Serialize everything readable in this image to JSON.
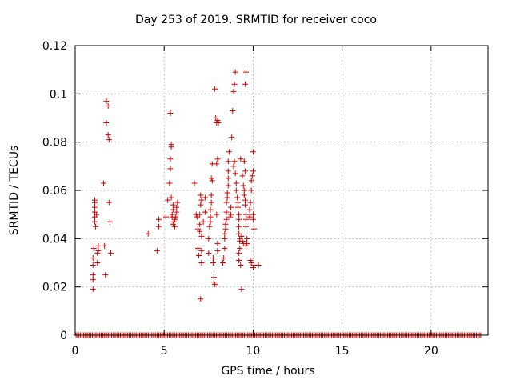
{
  "chart_data": {
    "type": "scatter",
    "title": "Day 253 of 2019, SRMTID for receiver coco",
    "xlabel": "GPS time / hours",
    "ylabel": "SRMTID / TECUs",
    "xlim": [
      0,
      23.2
    ],
    "ylim": [
      0,
      0.12
    ],
    "xticks": [
      0,
      5,
      10,
      15,
      20
    ],
    "yticks": [
      0,
      0.02,
      0.04,
      0.06,
      0.08,
      0.1,
      0.12
    ],
    "ytick_labels": [
      "0",
      "0.02",
      "0.04",
      "0.06",
      "0.08",
      "0.1",
      "0.12"
    ],
    "grid": true,
    "marker": "+",
    "color": "#cc0000",
    "zero_baseline": {
      "x_start": 0.05,
      "x_end": 22.8,
      "step": 0.083,
      "y": 0
    },
    "points": [
      [
        1.0,
        0.019
      ],
      [
        1.0,
        0.023
      ],
      [
        1.0,
        0.025
      ],
      [
        1.0,
        0.029
      ],
      [
        1.0,
        0.032
      ],
      [
        1.05,
        0.036
      ],
      [
        1.1,
        0.047
      ],
      [
        1.1,
        0.049
      ],
      [
        1.1,
        0.051
      ],
      [
        1.1,
        0.053
      ],
      [
        1.1,
        0.055
      ],
      [
        1.1,
        0.056
      ],
      [
        1.15,
        0.045
      ],
      [
        1.2,
        0.05
      ],
      [
        1.25,
        0.03
      ],
      [
        1.25,
        0.034
      ],
      [
        1.3,
        0.035
      ],
      [
        1.3,
        0.037
      ],
      [
        1.6,
        0.063
      ],
      [
        1.65,
        0.037
      ],
      [
        1.7,
        0.025
      ],
      [
        1.75,
        0.088
      ],
      [
        1.75,
        0.097
      ],
      [
        1.85,
        0.095
      ],
      [
        1.85,
        0.083
      ],
      [
        1.9,
        0.081
      ],
      [
        1.9,
        0.055
      ],
      [
        1.95,
        0.047
      ],
      [
        2.0,
        0.034
      ],
      [
        4.1,
        0.042
      ],
      [
        4.6,
        0.035
      ],
      [
        4.7,
        0.045
      ],
      [
        4.7,
        0.048
      ],
      [
        5.1,
        0.049
      ],
      [
        5.2,
        0.056
      ],
      [
        5.3,
        0.063
      ],
      [
        5.35,
        0.069
      ],
      [
        5.35,
        0.073
      ],
      [
        5.4,
        0.078
      ],
      [
        5.4,
        0.079
      ],
      [
        5.35,
        0.092
      ],
      [
        5.4,
        0.057
      ],
      [
        5.45,
        0.049
      ],
      [
        5.45,
        0.05
      ],
      [
        5.5,
        0.052
      ],
      [
        5.5,
        0.054
      ],
      [
        5.5,
        0.046
      ],
      [
        5.55,
        0.047
      ],
      [
        5.6,
        0.048
      ],
      [
        5.6,
        0.045
      ],
      [
        5.65,
        0.049
      ],
      [
        5.7,
        0.051
      ],
      [
        5.7,
        0.053
      ],
      [
        5.75,
        0.055
      ],
      [
        6.7,
        0.063
      ],
      [
        6.8,
        0.05
      ],
      [
        6.85,
        0.049
      ],
      [
        6.9,
        0.044
      ],
      [
        6.9,
        0.036
      ],
      [
        6.95,
        0.033
      ],
      [
        7.0,
        0.043
      ],
      [
        7.0,
        0.046
      ],
      [
        7.0,
        0.05
      ],
      [
        7.05,
        0.054
      ],
      [
        7.05,
        0.058
      ],
      [
        7.1,
        0.056
      ],
      [
        7.1,
        0.041
      ],
      [
        7.1,
        0.035
      ],
      [
        7.1,
        0.03
      ],
      [
        7.05,
        0.015
      ],
      [
        7.2,
        0.047
      ],
      [
        7.3,
        0.051
      ],
      [
        7.3,
        0.057
      ],
      [
        7.5,
        0.034
      ],
      [
        7.5,
        0.04
      ],
      [
        7.55,
        0.045
      ],
      [
        7.6,
        0.047
      ],
      [
        7.6,
        0.049
      ],
      [
        7.6,
        0.052
      ],
      [
        7.65,
        0.055
      ],
      [
        7.65,
        0.058
      ],
      [
        7.65,
        0.065
      ],
      [
        7.7,
        0.071
      ],
      [
        7.7,
        0.064
      ],
      [
        7.75,
        0.03
      ],
      [
        7.75,
        0.032
      ],
      [
        7.8,
        0.024
      ],
      [
        7.8,
        0.022
      ],
      [
        7.85,
        0.021
      ],
      [
        7.85,
        0.102
      ],
      [
        7.9,
        0.09
      ],
      [
        7.95,
        0.088
      ],
      [
        8.0,
        0.089
      ],
      [
        8.05,
        0.088
      ],
      [
        7.95,
        0.071
      ],
      [
        8.0,
        0.073
      ],
      [
        7.95,
        0.05
      ],
      [
        8.0,
        0.038
      ],
      [
        8.0,
        0.035
      ],
      [
        8.3,
        0.03
      ],
      [
        8.35,
        0.032
      ],
      [
        8.4,
        0.036
      ],
      [
        8.4,
        0.04
      ],
      [
        8.4,
        0.042
      ],
      [
        8.45,
        0.044
      ],
      [
        8.45,
        0.046
      ],
      [
        8.5,
        0.048
      ],
      [
        8.5,
        0.051
      ],
      [
        8.5,
        0.055
      ],
      [
        8.55,
        0.057
      ],
      [
        8.55,
        0.059
      ],
      [
        8.6,
        0.062
      ],
      [
        8.6,
        0.065
      ],
      [
        8.6,
        0.068
      ],
      [
        8.6,
        0.072
      ],
      [
        8.65,
        0.076
      ],
      [
        8.7,
        0.049
      ],
      [
        8.75,
        0.05
      ],
      [
        8.75,
        0.053
      ],
      [
        8.8,
        0.082
      ],
      [
        8.85,
        0.093
      ],
      [
        8.9,
        0.101
      ],
      [
        8.95,
        0.104
      ],
      [
        9.0,
        0.109
      ],
      [
        8.9,
        0.07
      ],
      [
        8.95,
        0.072
      ],
      [
        9.0,
        0.067
      ],
      [
        9.05,
        0.063
      ],
      [
        9.05,
        0.06
      ],
      [
        9.1,
        0.057
      ],
      [
        9.15,
        0.055
      ],
      [
        9.15,
        0.053
      ],
      [
        9.2,
        0.05
      ],
      [
        9.2,
        0.048
      ],
      [
        9.2,
        0.045
      ],
      [
        9.2,
        0.042
      ],
      [
        9.25,
        0.04
      ],
      [
        9.25,
        0.039
      ],
      [
        9.25,
        0.036
      ],
      [
        9.2,
        0.034
      ],
      [
        9.2,
        0.031
      ],
      [
        9.3,
        0.029
      ],
      [
        9.35,
        0.019
      ],
      [
        9.3,
        0.073
      ],
      [
        9.4,
        0.066
      ],
      [
        9.45,
        0.062
      ],
      [
        9.5,
        0.06
      ],
      [
        9.5,
        0.058
      ],
      [
        9.55,
        0.056
      ],
      [
        9.55,
        0.054
      ],
      [
        9.6,
        0.05
      ],
      [
        9.6,
        0.048
      ],
      [
        9.6,
        0.045
      ],
      [
        9.65,
        0.04
      ],
      [
        9.65,
        0.038
      ],
      [
        9.6,
        0.037
      ],
      [
        9.55,
        0.104
      ],
      [
        9.6,
        0.109
      ],
      [
        9.35,
        0.041
      ],
      [
        9.4,
        0.039
      ],
      [
        9.45,
        0.038
      ],
      [
        9.5,
        0.072
      ],
      [
        9.55,
        0.068
      ],
      [
        9.8,
        0.049
      ],
      [
        9.8,
        0.052
      ],
      [
        9.85,
        0.055
      ],
      [
        9.9,
        0.06
      ],
      [
        9.9,
        0.064
      ],
      [
        9.95,
        0.066
      ],
      [
        10.0,
        0.068
      ],
      [
        10.0,
        0.076
      ],
      [
        10.0,
        0.05
      ],
      [
        10.0,
        0.048
      ],
      [
        10.05,
        0.044
      ],
      [
        9.85,
        0.031
      ],
      [
        9.9,
        0.03
      ],
      [
        10.0,
        0.028
      ],
      [
        10.05,
        0.029
      ],
      [
        10.3,
        0.029
      ]
    ]
  }
}
